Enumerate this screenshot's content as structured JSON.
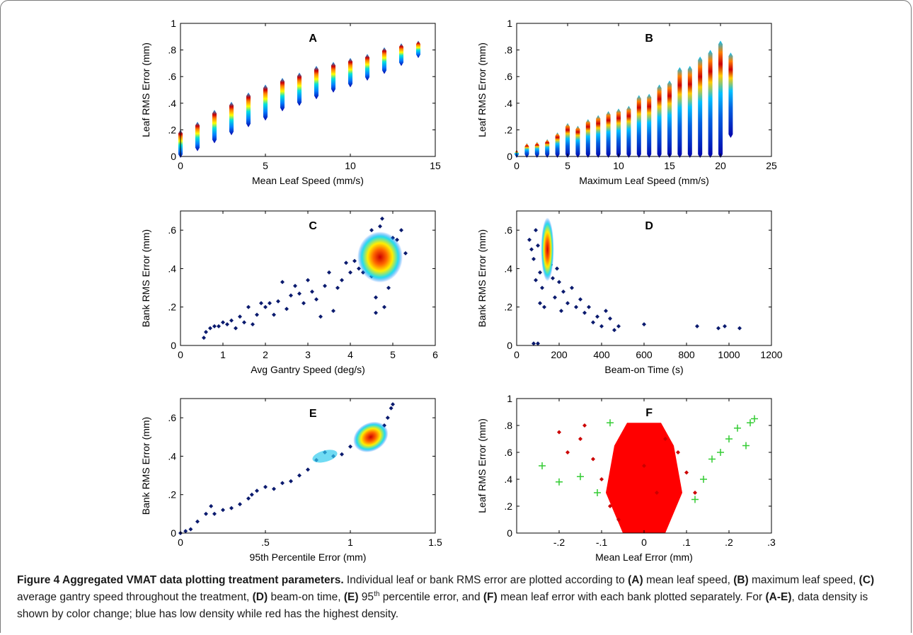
{
  "caption": {
    "title": "Figure 4 Aggregated VMAT data plotting treatment parameters.",
    "s1": " Individual leaf or bank RMS error are plotted according to ",
    "r1": "(A)",
    "s2": " mean leaf speed, ",
    "r2": "(B)",
    "s3": " maximum leaf speed, ",
    "r3": "(C)",
    "s4": " average gantry speed throughout the treatment, ",
    "r4": "(D)",
    "s5": " beam-on time, ",
    "r5": "(E)",
    "s6a": " 95",
    "s6sup": "th",
    "s6b": " percentile error, and ",
    "r6": "(F)",
    "s7": " mean leaf error with each bank plotted separately. For ",
    "r7": "(A-E)",
    "s8": ", data density is shown by color change; blue has low density while red has the highest density."
  },
  "chart_data": [
    {
      "panel": "A",
      "type": "scatter",
      "title": "A",
      "xlabel": "Mean Leaf Speed (mm/s)",
      "ylabel": "Leaf RMS Error (mm)",
      "xlim": [
        0,
        15
      ],
      "ylim": [
        0,
        1
      ],
      "xticks": [
        0,
        5,
        10,
        15
      ],
      "yticks": [
        0,
        0.2,
        0.4,
        0.6,
        0.8,
        1
      ],
      "grid": false,
      "color_encoding": "density",
      "columns": [
        {
          "x": 0,
          "ymin": 0.0,
          "ymax": 0.19
        },
        {
          "x": 1,
          "ymin": 0.05,
          "ymax": 0.25
        },
        {
          "x": 2,
          "ymin": 0.11,
          "ymax": 0.34
        },
        {
          "x": 3,
          "ymin": 0.17,
          "ymax": 0.4
        },
        {
          "x": 4,
          "ymin": 0.23,
          "ymax": 0.47
        },
        {
          "x": 5,
          "ymin": 0.28,
          "ymax": 0.53
        },
        {
          "x": 6,
          "ymin": 0.35,
          "ymax": 0.58
        },
        {
          "x": 7,
          "ymin": 0.39,
          "ymax": 0.62
        },
        {
          "x": 8,
          "ymin": 0.44,
          "ymax": 0.67
        },
        {
          "x": 9,
          "ymin": 0.49,
          "ymax": 0.7
        },
        {
          "x": 10,
          "ymin": 0.53,
          "ymax": 0.73
        },
        {
          "x": 11,
          "ymin": 0.58,
          "ymax": 0.76
        },
        {
          "x": 12,
          "ymin": 0.63,
          "ymax": 0.81
        },
        {
          "x": 13,
          "ymin": 0.69,
          "ymax": 0.84
        },
        {
          "x": 14,
          "ymin": 0.75,
          "ymax": 0.86
        }
      ]
    },
    {
      "panel": "B",
      "type": "scatter",
      "title": "B",
      "xlabel": "Maximum Leaf Speed (mm/s)",
      "ylabel": "Leaf RMS Error (mm)",
      "xlim": [
        0,
        25
      ],
      "ylim": [
        0,
        1
      ],
      "xticks": [
        0,
        5,
        10,
        15,
        20,
        25
      ],
      "yticks": [
        0,
        0.2,
        0.4,
        0.6,
        0.8,
        1
      ],
      "grid": false,
      "color_encoding": "density",
      "columns": [
        {
          "x": 0,
          "ymin": 0.0,
          "ymax": 0.04
        },
        {
          "x": 1,
          "ymin": 0.0,
          "ymax": 0.09
        },
        {
          "x": 2,
          "ymin": 0.0,
          "ymax": 0.1
        },
        {
          "x": 3,
          "ymin": 0.0,
          "ymax": 0.12
        },
        {
          "x": 4,
          "ymin": 0.0,
          "ymax": 0.17
        },
        {
          "x": 5,
          "ymin": 0.0,
          "ymax": 0.24
        },
        {
          "x": 6,
          "ymin": 0.0,
          "ymax": 0.22
        },
        {
          "x": 7,
          "ymin": 0.0,
          "ymax": 0.27
        },
        {
          "x": 8,
          "ymin": 0.0,
          "ymax": 0.3
        },
        {
          "x": 9,
          "ymin": 0.0,
          "ymax": 0.33
        },
        {
          "x": 10,
          "ymin": 0.0,
          "ymax": 0.35
        },
        {
          "x": 11,
          "ymin": 0.0,
          "ymax": 0.37
        },
        {
          "x": 12,
          "ymin": 0.0,
          "ymax": 0.45
        },
        {
          "x": 13,
          "ymin": 0.0,
          "ymax": 0.46
        },
        {
          "x": 14,
          "ymin": 0.0,
          "ymax": 0.53
        },
        {
          "x": 15,
          "ymin": 0.0,
          "ymax": 0.56
        },
        {
          "x": 16,
          "ymin": 0.0,
          "ymax": 0.66
        },
        {
          "x": 17,
          "ymin": 0.0,
          "ymax": 0.67
        },
        {
          "x": 18,
          "ymin": 0.0,
          "ymax": 0.74
        },
        {
          "x": 19,
          "ymin": 0.0,
          "ymax": 0.79
        },
        {
          "x": 20,
          "ymin": 0.0,
          "ymax": 0.86
        },
        {
          "x": 21,
          "ymin": 0.15,
          "ymax": 0.77
        }
      ]
    },
    {
      "panel": "C",
      "type": "scatter",
      "title": "C",
      "xlabel": "Avg Gantry Speed (deg/s)",
      "ylabel": "Bank RMS Error (mm)",
      "xlim": [
        0,
        6
      ],
      "ylim": [
        0,
        0.7
      ],
      "xticks": [
        0,
        1,
        2,
        3,
        4,
        5,
        6
      ],
      "yticks": [
        0,
        0.2,
        0.4,
        0.6
      ],
      "grid": false,
      "color_encoding": "density",
      "points": [
        [
          0.55,
          0.04
        ],
        [
          0.6,
          0.07
        ],
        [
          0.7,
          0.09
        ],
        [
          0.8,
          0.1
        ],
        [
          0.9,
          0.1
        ],
        [
          1.0,
          0.12
        ],
        [
          1.1,
          0.11
        ],
        [
          1.2,
          0.13
        ],
        [
          1.3,
          0.09
        ],
        [
          1.4,
          0.15
        ],
        [
          1.5,
          0.12
        ],
        [
          1.6,
          0.2
        ],
        [
          1.7,
          0.11
        ],
        [
          1.8,
          0.16
        ],
        [
          1.9,
          0.22
        ],
        [
          2.0,
          0.2
        ],
        [
          2.1,
          0.22
        ],
        [
          2.2,
          0.16
        ],
        [
          2.3,
          0.23
        ],
        [
          2.4,
          0.33
        ],
        [
          2.5,
          0.19
        ],
        [
          2.6,
          0.26
        ],
        [
          2.7,
          0.31
        ],
        [
          2.8,
          0.27
        ],
        [
          2.9,
          0.22
        ],
        [
          3.0,
          0.34
        ],
        [
          3.1,
          0.28
        ],
        [
          3.2,
          0.24
        ],
        [
          3.3,
          0.15
        ],
        [
          3.4,
          0.31
        ],
        [
          3.5,
          0.38
        ],
        [
          3.6,
          0.18
        ],
        [
          3.7,
          0.3
        ],
        [
          3.8,
          0.34
        ],
        [
          3.9,
          0.43
        ],
        [
          4.0,
          0.38
        ],
        [
          4.1,
          0.44
        ],
        [
          4.2,
          0.4
        ],
        [
          4.3,
          0.38
        ],
        [
          4.4,
          0.42
        ],
        [
          4.5,
          0.36
        ],
        [
          4.6,
          0.44
        ],
        [
          4.7,
          0.52
        ],
        [
          4.8,
          0.5
        ],
        [
          4.9,
          0.47
        ],
        [
          5.0,
          0.56
        ],
        [
          5.1,
          0.55
        ],
        [
          5.2,
          0.6
        ],
        [
          4.5,
          0.6
        ],
        [
          4.6,
          0.25
        ],
        [
          4.8,
          0.2
        ],
        [
          4.9,
          0.3
        ],
        [
          4.7,
          0.62
        ],
        [
          4.75,
          0.66
        ],
        [
          5.3,
          0.48
        ],
        [
          4.6,
          0.17
        ]
      ]
    },
    {
      "panel": "D",
      "type": "scatter",
      "title": "D",
      "xlabel": "Beam-on Time (s)",
      "ylabel": "Bank RMS Error (mm)",
      "xlim": [
        0,
        1200
      ],
      "ylim": [
        0,
        0.7
      ],
      "xticks": [
        0,
        200,
        400,
        600,
        800,
        1000,
        1200
      ],
      "yticks": [
        0,
        0.2,
        0.4,
        0.6
      ],
      "grid": false,
      "color_encoding": "density",
      "points": [
        [
          60,
          0.55
        ],
        [
          70,
          0.5
        ],
        [
          80,
          0.45
        ],
        [
          90,
          0.6
        ],
        [
          100,
          0.52
        ],
        [
          110,
          0.38
        ],
        [
          120,
          0.3
        ],
        [
          130,
          0.47
        ],
        [
          140,
          0.58
        ],
        [
          150,
          0.5
        ],
        [
          160,
          0.42
        ],
        [
          170,
          0.35
        ],
        [
          180,
          0.25
        ],
        [
          190,
          0.4
        ],
        [
          200,
          0.33
        ],
        [
          210,
          0.18
        ],
        [
          220,
          0.28
        ],
        [
          240,
          0.22
        ],
        [
          260,
          0.3
        ],
        [
          280,
          0.2
        ],
        [
          300,
          0.24
        ],
        [
          320,
          0.17
        ],
        [
          340,
          0.2
        ],
        [
          360,
          0.12
        ],
        [
          380,
          0.15
        ],
        [
          400,
          0.1
        ],
        [
          420,
          0.18
        ],
        [
          440,
          0.14
        ],
        [
          460,
          0.08
        ],
        [
          480,
          0.1
        ],
        [
          600,
          0.11
        ],
        [
          850,
          0.1
        ],
        [
          950,
          0.09
        ],
        [
          980,
          0.1
        ],
        [
          1050,
          0.09
        ],
        [
          80,
          0.01
        ],
        [
          100,
          0.01
        ],
        [
          90,
          0.34
        ],
        [
          110,
          0.22
        ],
        [
          130,
          0.2
        ]
      ]
    },
    {
      "panel": "E",
      "type": "scatter",
      "title": "E",
      "xlabel": "95th Percentile Error (mm)",
      "ylabel": "Bank RMS Error (mm)",
      "xlim": [
        0,
        1.5
      ],
      "ylim": [
        0,
        0.7
      ],
      "xticks": [
        0,
        0.5,
        1,
        1.5
      ],
      "yticks": [
        0,
        0.2,
        0.4,
        0.6
      ],
      "grid": false,
      "color_encoding": "density",
      "points": [
        [
          0.0,
          0.0
        ],
        [
          0.03,
          0.01
        ],
        [
          0.06,
          0.02
        ],
        [
          0.1,
          0.06
        ],
        [
          0.15,
          0.1
        ],
        [
          0.2,
          0.1
        ],
        [
          0.25,
          0.12
        ],
        [
          0.3,
          0.13
        ],
        [
          0.35,
          0.15
        ],
        [
          0.4,
          0.18
        ],
        [
          0.45,
          0.22
        ],
        [
          0.5,
          0.24
        ],
        [
          0.55,
          0.23
        ],
        [
          0.6,
          0.26
        ],
        [
          0.65,
          0.27
        ],
        [
          0.7,
          0.3
        ],
        [
          0.75,
          0.33
        ],
        [
          0.8,
          0.38
        ],
        [
          0.85,
          0.42
        ],
        [
          0.9,
          0.4
        ],
        [
          0.95,
          0.41
        ],
        [
          1.0,
          0.45
        ],
        [
          1.05,
          0.47
        ],
        [
          1.1,
          0.5
        ],
        [
          1.15,
          0.52
        ],
        [
          1.2,
          0.56
        ],
        [
          1.22,
          0.6
        ],
        [
          1.24,
          0.65
        ],
        [
          1.25,
          0.67
        ],
        [
          0.18,
          0.14
        ],
        [
          0.42,
          0.2
        ],
        [
          1.12,
          0.54
        ]
      ]
    },
    {
      "panel": "F",
      "type": "scatter",
      "title": "F",
      "xlabel": "Mean Leaf Error (mm)",
      "ylabel": "Leaf RMS Error (mm)",
      "xlim": [
        -0.3,
        0.3
      ],
      "ylim": [
        0,
        1
      ],
      "xticks": [
        -0.2,
        -0.1,
        0,
        0.1,
        0.2,
        0.3
      ],
      "yticks": [
        0,
        0.2,
        0.4,
        0.6,
        0.8,
        1
      ],
      "grid": false,
      "series": [
        {
          "marker": "dot",
          "color": "#cc0000",
          "points": [
            [
              -0.2,
              0.75
            ],
            [
              -0.15,
              0.7
            ],
            [
              -0.12,
              0.55
            ],
            [
              -0.1,
              0.4
            ],
            [
              -0.08,
              0.2
            ],
            [
              -0.06,
              0.1
            ],
            [
              0.0,
              0.5
            ],
            [
              0.03,
              0.3
            ],
            [
              0.05,
              0.7
            ],
            [
              0.08,
              0.6
            ],
            [
              0.1,
              0.45
            ],
            [
              0.12,
              0.3
            ],
            [
              -0.18,
              0.6
            ],
            [
              -0.14,
              0.8
            ]
          ]
        },
        {
          "marker": "plus",
          "color": "#33cc33",
          "points": [
            [
              -0.24,
              0.5
            ],
            [
              -0.2,
              0.38
            ],
            [
              -0.15,
              0.42
            ],
            [
              -0.11,
              0.3
            ],
            [
              0.12,
              0.25
            ],
            [
              0.16,
              0.55
            ],
            [
              0.2,
              0.7
            ],
            [
              0.22,
              0.78
            ],
            [
              0.25,
              0.82
            ],
            [
              0.26,
              0.85
            ],
            [
              0.24,
              0.65
            ],
            [
              0.18,
              0.6
            ],
            [
              0.14,
              0.4
            ],
            [
              -0.08,
              0.82
            ]
          ]
        }
      ]
    }
  ]
}
